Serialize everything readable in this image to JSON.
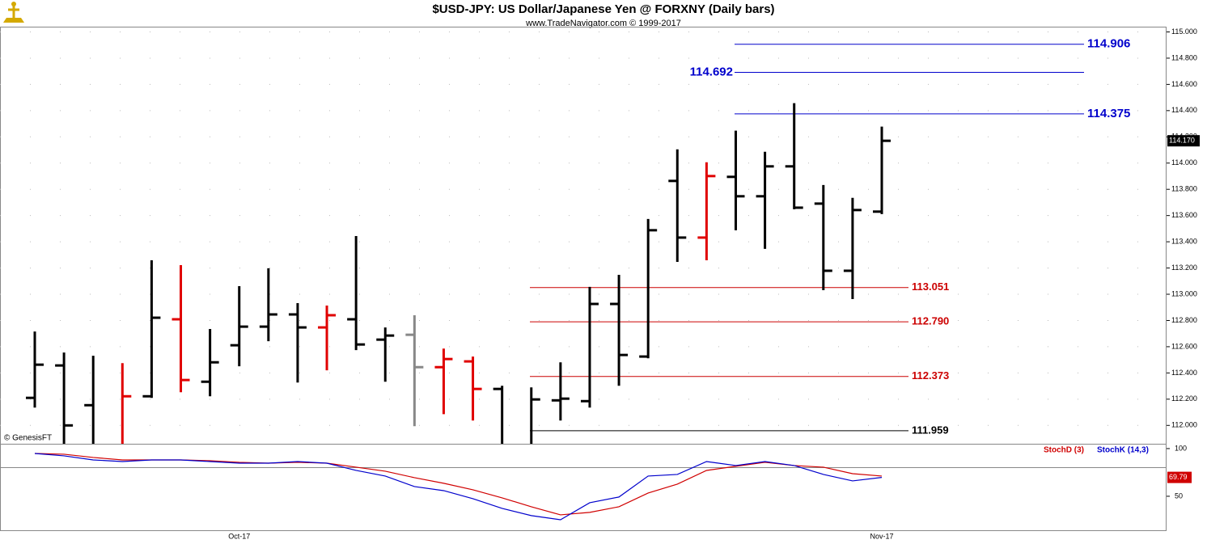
{
  "chart_data": [
    {
      "type": "ohlc",
      "title": "$USD-JPY:  US Dollar/Japanese Yen @ FORXNY  (Daily bars)",
      "subtitle": "www.TradeNavigator.com © 1999-2017",
      "source": "© GenesisFT",
      "categories": [
        null,
        null,
        null,
        null,
        null,
        null,
        null,
        "Oct-17",
        null,
        null,
        null,
        null,
        null,
        null,
        null,
        null,
        null,
        null,
        null,
        null,
        null,
        null,
        null,
        null,
        null,
        null,
        null,
        null,
        null,
        "Nov-17"
      ],
      "series": [
        {
          "open": [
            112.21,
            112.457,
            112.154,
            111.82,
            112.222,
            112.809,
            112.333,
            112.611,
            112.753,
            112.846,
            112.747,
            112.809,
            112.654,
            112.691,
            112.444,
            112.488,
            112.278,
            111.82,
            112.191,
            112.185,
            112.926,
            112.525,
            113.864,
            113.432,
            113.895,
            113.747,
            113.975,
            113.691,
            113.179,
            113.63
          ],
          "high": [
            112.716,
            112.556,
            112.531,
            112.475,
            113.259,
            113.222,
            112.735,
            113.062,
            113.198,
            112.932,
            112.914,
            113.444,
            112.747,
            112.84,
            112.586,
            112.525,
            112.302,
            112.29,
            112.481,
            113.056,
            113.148,
            113.574,
            114.105,
            114.006,
            114.247,
            114.086,
            114.457,
            113.833,
            113.735,
            114.278
          ],
          "low": [
            112.136,
            111.8,
            111.8,
            111.8,
            112.21,
            112.253,
            112.222,
            112.451,
            112.642,
            112.327,
            112.42,
            112.574,
            112.333,
            111.994,
            112.086,
            112.037,
            111.8,
            111.8,
            112.037,
            112.136,
            112.302,
            112.512,
            113.247,
            113.259,
            113.488,
            113.346,
            113.648,
            113.031,
            112.963,
            113.611
          ],
          "close": [
            112.463,
            112.0,
            111.82,
            112.222,
            112.821,
            112.346,
            112.481,
            112.753,
            112.846,
            112.747,
            112.84,
            112.617,
            112.685,
            112.444,
            112.506,
            112.278,
            111.82,
            112.198,
            112.204,
            112.926,
            112.537,
            113.488,
            113.432,
            113.901,
            113.747,
            113.975,
            113.66,
            113.179,
            113.642,
            114.17
          ],
          "colors": [
            "#000000",
            "#000000",
            "#000000",
            "#e00000",
            "#000000",
            "#e00000",
            "#000000",
            "#000000",
            "#000000",
            "#000000",
            "#e00000",
            "#000000",
            "#000000",
            "#888888",
            "#e00000",
            "#e00000",
            "#000000",
            "#000000",
            "#000000",
            "#000000",
            "#000000",
            "#000000",
            "#000000",
            "#e00000",
            "#000000",
            "#000000",
            "#000000",
            "#000000",
            "#000000",
            "#000000"
          ],
          "last_label": "114.170"
        }
      ],
      "ylim": [
        111.86,
        115.04
      ],
      "yticks": [
        {
          "value": 112,
          "label": "112.000"
        },
        {
          "value": 112.2,
          "label": "112.200"
        },
        {
          "value": 112.4,
          "label": "112.400"
        },
        {
          "value": 112.6,
          "label": "112.600"
        },
        {
          "value": 112.8,
          "label": "112.800"
        },
        {
          "value": 113,
          "label": "113.000"
        },
        {
          "value": 113.2,
          "label": "113.200"
        },
        {
          "value": 113.4,
          "label": "113.400"
        },
        {
          "value": 113.6,
          "label": "113.600"
        },
        {
          "value": 113.8,
          "label": "113.800"
        },
        {
          "value": 114,
          "label": "114.000"
        },
        {
          "value": 114.2,
          "label": "114.200"
        },
        {
          "value": 114.4,
          "label": "114.400"
        },
        {
          "value": 114.6,
          "label": "114.600"
        },
        {
          "value": 114.8,
          "label": "114.800"
        },
        {
          "value": 115,
          "label": "115.000"
        }
      ],
      "grid": true,
      "levels": [
        {
          "value": 114.906,
          "label": "114.906",
          "color": "#0000cc"
        },
        {
          "value": 114.692,
          "label": "114.692",
          "color": "#0000cc"
        },
        {
          "value": 114.375,
          "label": "114.375",
          "color": "#0000cc"
        },
        {
          "value": 113.051,
          "label": "113.051",
          "color": "#cc0000"
        },
        {
          "value": 112.79,
          "label": "112.790",
          "color": "#cc0000"
        },
        {
          "value": 112.373,
          "label": "112.373",
          "color": "#cc0000"
        },
        {
          "value": 111.959,
          "label": "111.959",
          "color": "#000000"
        }
      ]
    },
    {
      "type": "line",
      "series": [
        {
          "name": "StochD (3)",
          "color": "#d00000",
          "values": [
            94.9,
            94.1,
            90.7,
            88.1,
            88.1,
            88.1,
            87.3,
            85.6,
            84.7,
            85.6,
            84.7,
            80.5,
            76.3,
            69.5,
            63.6,
            56.8,
            48.3,
            39.0,
            30.5,
            33.1,
            39.0,
            53.4,
            62.7,
            77.1,
            81.4,
            85.6,
            82.2,
            80.5,
            73.7,
            71.2
          ]
        },
        {
          "name": "StochK (14,3)",
          "color": "#0000cc",
          "values": [
            94.9,
            92.4,
            88.1,
            86.4,
            88.1,
            88.1,
            86.4,
            84.7,
            84.7,
            86.4,
            84.7,
            77.1,
            71.2,
            60.2,
            55.9,
            47.5,
            37.3,
            29.7,
            25.4,
            43.2,
            49.2,
            71.2,
            72.9,
            86.4,
            82.2,
            86.4,
            82.2,
            72.9,
            66.1,
            69.79
          ],
          "last_label": "69.79"
        }
      ],
      "ylim": [
        13.5,
        104.2
      ],
      "yticks": [
        100,
        50
      ],
      "hline": 80
    }
  ]
}
